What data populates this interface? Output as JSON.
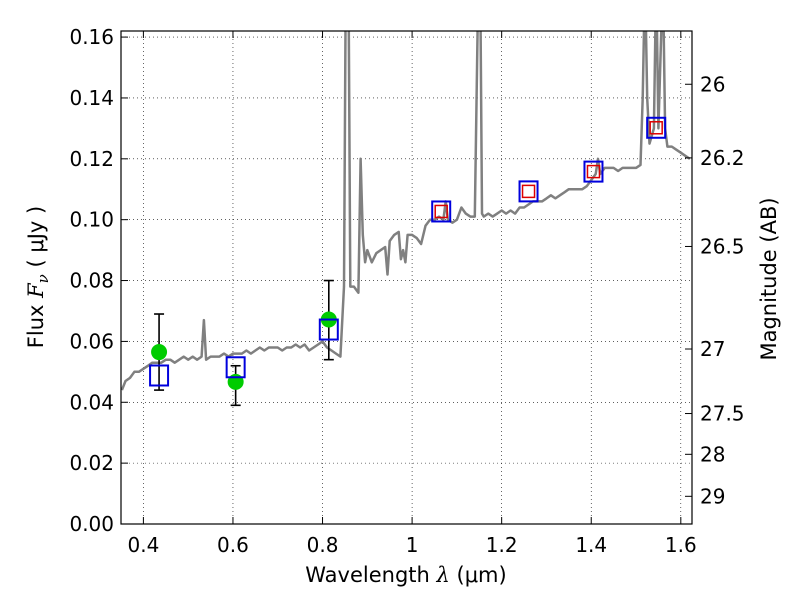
{
  "chart_data": {
    "type": "scatter",
    "xlabel": {
      "prefix": "Wavelength  ",
      "symbol": "λ",
      "unit": " (μm)"
    },
    "ylabel": {
      "prefix": "Flux  ",
      "symbol": "F",
      "subscript": "ν",
      "unit": "  ( μJy )"
    },
    "y2label": "Magnitude (AB)",
    "xlim": [
      0.35,
      1.625
    ],
    "ylim": [
      0.0,
      0.162
    ],
    "grid": true,
    "x_ticks": [
      0.4,
      0.6,
      0.8,
      1.0,
      1.2,
      1.4,
      1.6
    ],
    "x_tick_labels": [
      "0.4",
      "0.6",
      "0.8",
      "1",
      "1.2",
      "1.4",
      "1.6"
    ],
    "y_ticks": [
      0.0,
      0.02,
      0.04,
      0.06,
      0.08,
      0.1,
      0.12,
      0.14,
      0.16
    ],
    "y_tick_labels": [
      "0.00",
      "0.02",
      "0.04",
      "0.06",
      "0.08",
      "0.10",
      "0.12",
      "0.14",
      "0.16"
    ],
    "mag_ticks": [
      {
        "flux": 0.1445,
        "label": "26"
      },
      {
        "flux": 0.1203,
        "label": "26.2"
      },
      {
        "flux": 0.0912,
        "label": "26.5"
      },
      {
        "flux": 0.0575,
        "label": "27"
      },
      {
        "flux": 0.0363,
        "label": "27.5"
      },
      {
        "flux": 0.0229,
        "label": "28"
      },
      {
        "flux": 0.0091,
        "label": "29"
      }
    ],
    "series": [
      {
        "kind": "line",
        "color": "#808080",
        "points": [
          [
            0.352,
            0.044
          ],
          [
            0.36,
            0.047
          ],
          [
            0.37,
            0.048
          ],
          [
            0.38,
            0.05
          ],
          [
            0.39,
            0.05
          ],
          [
            0.4,
            0.051
          ],
          [
            0.41,
            0.052
          ],
          [
            0.42,
            0.053
          ],
          [
            0.43,
            0.053
          ],
          [
            0.44,
            0.053
          ],
          [
            0.45,
            0.054
          ],
          [
            0.46,
            0.054
          ],
          [
            0.47,
            0.053
          ],
          [
            0.48,
            0.054
          ],
          [
            0.49,
            0.055
          ],
          [
            0.5,
            0.054
          ],
          [
            0.51,
            0.055
          ],
          [
            0.52,
            0.054
          ],
          [
            0.53,
            0.055
          ],
          [
            0.535,
            0.067
          ],
          [
            0.54,
            0.054
          ],
          [
            0.55,
            0.055
          ],
          [
            0.56,
            0.055
          ],
          [
            0.57,
            0.055
          ],
          [
            0.58,
            0.056
          ],
          [
            0.59,
            0.055
          ],
          [
            0.6,
            0.056
          ],
          [
            0.61,
            0.056
          ],
          [
            0.62,
            0.056
          ],
          [
            0.63,
            0.057
          ],
          [
            0.64,
            0.056
          ],
          [
            0.65,
            0.057
          ],
          [
            0.66,
            0.058
          ],
          [
            0.67,
            0.057
          ],
          [
            0.68,
            0.058
          ],
          [
            0.69,
            0.058
          ],
          [
            0.7,
            0.058
          ],
          [
            0.71,
            0.057
          ],
          [
            0.72,
            0.058
          ],
          [
            0.73,
            0.058
          ],
          [
            0.74,
            0.059
          ],
          [
            0.75,
            0.058
          ],
          [
            0.76,
            0.059
          ],
          [
            0.77,
            0.057
          ],
          [
            0.78,
            0.058
          ],
          [
            0.79,
            0.059
          ],
          [
            0.8,
            0.06
          ],
          [
            0.81,
            0.058
          ],
          [
            0.82,
            0.057
          ],
          [
            0.83,
            0.056
          ],
          [
            0.84,
            0.055
          ],
          [
            0.848,
            0.078
          ],
          [
            0.852,
            0.18
          ],
          [
            0.858,
            0.18
          ],
          [
            0.862,
            0.078
          ],
          [
            0.87,
            0.078
          ],
          [
            0.88,
            0.076
          ],
          [
            0.885,
            0.12
          ],
          [
            0.89,
            0.095
          ],
          [
            0.895,
            0.086
          ],
          [
            0.9,
            0.09
          ],
          [
            0.91,
            0.086
          ],
          [
            0.92,
            0.089
          ],
          [
            0.93,
            0.09
          ],
          [
            0.94,
            0.091
          ],
          [
            0.945,
            0.082
          ],
          [
            0.95,
            0.093
          ],
          [
            0.96,
            0.095
          ],
          [
            0.97,
            0.096
          ],
          [
            0.975,
            0.087
          ],
          [
            0.98,
            0.09
          ],
          [
            0.985,
            0.086
          ],
          [
            0.99,
            0.095
          ],
          [
            1.0,
            0.095
          ],
          [
            1.01,
            0.094
          ],
          [
            1.02,
            0.092
          ],
          [
            1.03,
            0.098
          ],
          [
            1.04,
            0.1
          ],
          [
            1.05,
            0.1
          ],
          [
            1.06,
            0.101
          ],
          [
            1.07,
            0.1
          ],
          [
            1.075,
            0.106
          ],
          [
            1.08,
            0.1
          ],
          [
            1.09,
            0.099
          ],
          [
            1.1,
            0.1
          ],
          [
            1.11,
            0.104
          ],
          [
            1.12,
            0.102
          ],
          [
            1.13,
            0.101
          ],
          [
            1.14,
            0.101
          ],
          [
            1.148,
            0.18
          ],
          [
            1.152,
            0.18
          ],
          [
            1.156,
            0.102
          ],
          [
            1.16,
            0.101
          ],
          [
            1.17,
            0.102
          ],
          [
            1.18,
            0.101
          ],
          [
            1.19,
            0.102
          ],
          [
            1.2,
            0.103
          ],
          [
            1.21,
            0.102
          ],
          [
            1.22,
            0.103
          ],
          [
            1.23,
            0.102
          ],
          [
            1.24,
            0.104
          ],
          [
            1.25,
            0.104
          ],
          [
            1.26,
            0.105
          ],
          [
            1.27,
            0.106
          ],
          [
            1.28,
            0.106
          ],
          [
            1.29,
            0.106
          ],
          [
            1.3,
            0.107
          ],
          [
            1.31,
            0.108
          ],
          [
            1.32,
            0.107
          ],
          [
            1.33,
            0.108
          ],
          [
            1.34,
            0.109
          ],
          [
            1.35,
            0.11
          ],
          [
            1.36,
            0.11
          ],
          [
            1.37,
            0.11
          ],
          [
            1.38,
            0.11
          ],
          [
            1.39,
            0.111
          ],
          [
            1.4,
            0.113
          ],
          [
            1.41,
            0.115
          ],
          [
            1.415,
            0.12
          ],
          [
            1.42,
            0.115
          ],
          [
            1.43,
            0.117
          ],
          [
            1.44,
            0.117
          ],
          [
            1.45,
            0.117
          ],
          [
            1.46,
            0.116
          ],
          [
            1.47,
            0.117
          ],
          [
            1.48,
            0.117
          ],
          [
            1.49,
            0.117
          ],
          [
            1.5,
            0.117
          ],
          [
            1.51,
            0.118
          ],
          [
            1.515,
            0.14
          ],
          [
            1.52,
            0.18
          ],
          [
            1.525,
            0.14
          ],
          [
            1.53,
            0.125
          ],
          [
            1.54,
            0.13
          ],
          [
            1.545,
            0.18
          ],
          [
            1.55,
            0.13
          ],
          [
            1.56,
            0.18
          ],
          [
            1.565,
            0.13
          ],
          [
            1.57,
            0.124
          ],
          [
            1.58,
            0.124
          ],
          [
            1.59,
            0.123
          ],
          [
            1.6,
            0.122
          ],
          [
            1.61,
            0.121
          ],
          [
            1.62,
            0.12
          ]
        ]
      },
      {
        "kind": "errorbar",
        "color": "#000000",
        "points": [
          {
            "x": 0.435,
            "lo": 0.044,
            "hi": 0.069
          },
          {
            "x": 0.606,
            "lo": 0.039,
            "hi": 0.052
          },
          {
            "x": 0.814,
            "lo": 0.054,
            "hi": 0.08
          }
        ]
      },
      {
        "kind": "scatter",
        "marker": "circle",
        "color": "#00cc00",
        "x": [
          0.435,
          0.606,
          0.814
        ],
        "y": [
          0.0565,
          0.0467,
          0.0672
        ]
      },
      {
        "kind": "scatter",
        "marker": "square",
        "color": "#0000dd",
        "x": [
          0.435,
          0.606,
          0.814,
          1.065,
          1.26,
          1.405,
          1.545
        ],
        "y": [
          0.0488,
          0.0515,
          0.0639,
          0.1027,
          0.1093,
          0.1158,
          0.1302
        ]
      },
      {
        "kind": "scatter",
        "marker": "small-square",
        "color": "#dd0000",
        "x": [
          1.065,
          1.26,
          1.405,
          1.545
        ],
        "y": [
          0.1027,
          0.1093,
          0.1158,
          0.1302
        ]
      }
    ]
  }
}
